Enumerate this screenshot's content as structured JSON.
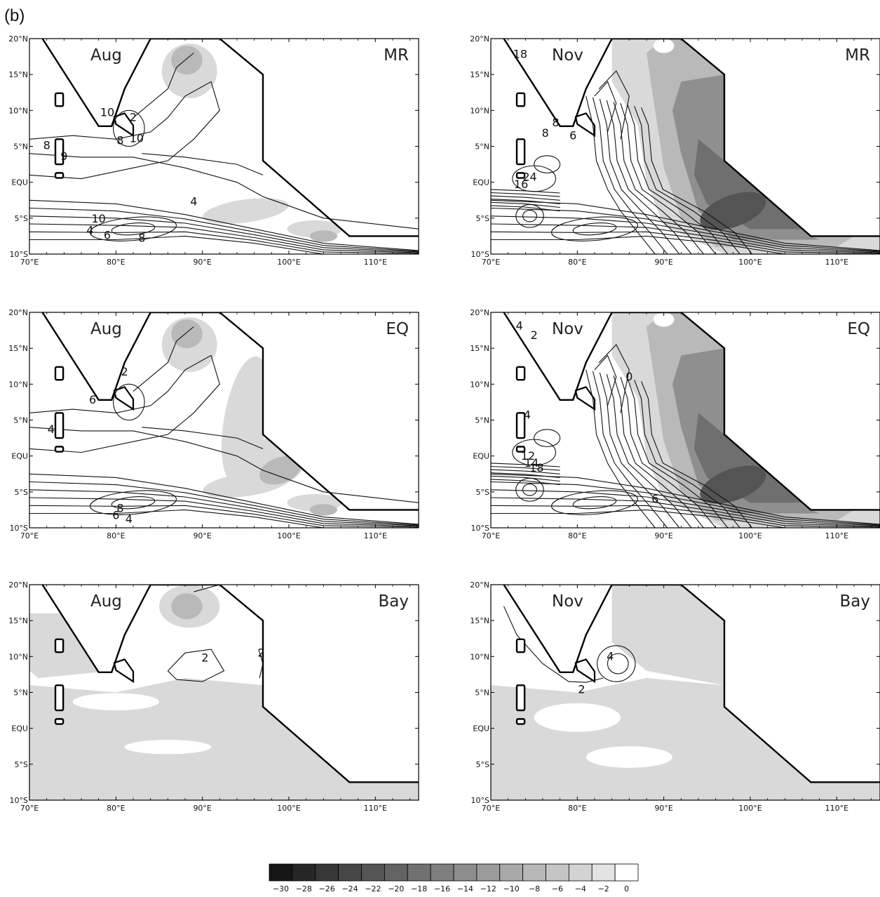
{
  "figure_label": "(b)",
  "x_ticks": [
    "70°E",
    "80°E",
    "90°E",
    "100°E",
    "110°E"
  ],
  "y_ticks": [
    "20°N",
    "15°N",
    "10°N",
    "5°N",
    "EQU",
    "5°S",
    "10°S"
  ],
  "lon_range": [
    70,
    115
  ],
  "lat_range": [
    -10,
    20
  ],
  "panels": [
    {
      "month": "Aug",
      "experiment": "MR",
      "contour_labels": [
        "10",
        "8",
        "10",
        "2",
        "10",
        "4",
        "6",
        "8",
        "9",
        "8",
        "4"
      ]
    },
    {
      "month": "Nov",
      "experiment": "MR",
      "contour_labels": [
        "18",
        "8",
        "6",
        "8",
        "16",
        "24"
      ]
    },
    {
      "month": "Aug",
      "experiment": "EQ",
      "contour_labels": [
        "2",
        "6",
        "4",
        "8",
        "6",
        "4"
      ]
    },
    {
      "month": "Nov",
      "experiment": "EQ",
      "contour_labels": [
        "4",
        "2",
        "0",
        "6",
        "4",
        "12",
        "14",
        "18"
      ]
    },
    {
      "month": "Aug",
      "experiment": "Bay",
      "contour_labels": [
        "2",
        "2"
      ]
    },
    {
      "month": "Nov",
      "experiment": "Bay",
      "contour_labels": [
        "4",
        "2"
      ]
    }
  ],
  "colorbar": {
    "labels": [
      "−30",
      "−28",
      "−26",
      "−24",
      "−22",
      "−20",
      "−18",
      "−16",
      "−14",
      "−12",
      "−10",
      "−8",
      "−6",
      "−4",
      "−2",
      "0"
    ],
    "colors": [
      "#161616",
      "#262626",
      "#363636",
      "#464646",
      "#555555",
      "#636363",
      "#717171",
      "#7f7f7f",
      "#8d8d8d",
      "#9b9b9b",
      "#a9a9a9",
      "#b7b7b7",
      "#c5c5c5",
      "#d3d3d3",
      "#e3e3e3",
      "#ffffff"
    ]
  }
}
